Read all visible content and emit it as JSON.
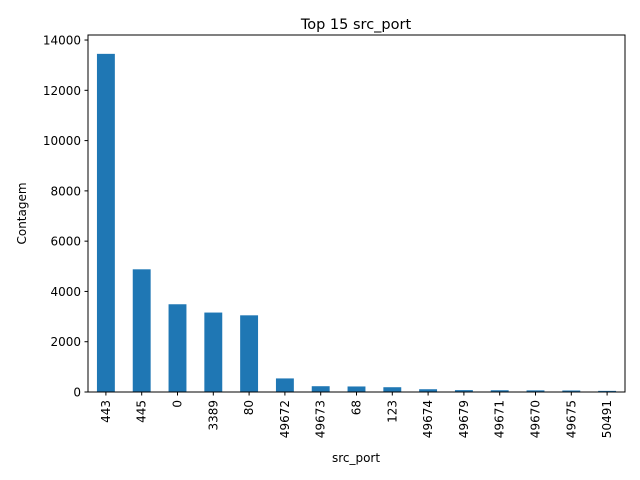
{
  "chart_data": {
    "type": "bar",
    "title": "Top 15 src_port",
    "xlabel": "src_port",
    "ylabel": "Contagem",
    "categories": [
      "443",
      "445",
      "0",
      "3389",
      "80",
      "49672",
      "49673",
      "68",
      "123",
      "49674",
      "49679",
      "49671",
      "49670",
      "49675",
      "50491"
    ],
    "values": [
      13450,
      4880,
      3490,
      3160,
      3050,
      540,
      230,
      220,
      190,
      110,
      75,
      70,
      65,
      60,
      45
    ],
    "ylim": [
      0,
      14200
    ],
    "yticks": [
      0,
      2000,
      4000,
      6000,
      8000,
      10000,
      12000,
      14000
    ],
    "bar_color": "#1f77b4",
    "grid": false,
    "legend": "none"
  }
}
